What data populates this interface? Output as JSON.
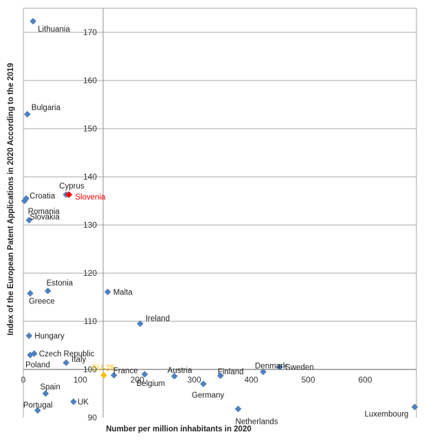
{
  "chart_data": {
    "type": "scatter",
    "xlabel": "Number per million inhabitants in 2020",
    "ylabel": "Index of the European Patent Applications in 2020 According to the 2019",
    "xlim": [
      0,
      690
    ],
    "ylim": [
      90,
      175
    ],
    "x_ticks": [
      "0",
      "100",
      "200",
      "300",
      "400",
      "500",
      "600"
    ],
    "y_ticks": [
      "90",
      "100",
      "110",
      "120",
      "130",
      "140",
      "150",
      "160",
      "170"
    ],
    "grid": "horizontal",
    "reference_lines": {
      "x": 140,
      "y": 100
    },
    "colors": {
      "default": "#4f81bd",
      "highlight": "#ff0000",
      "average": "#ffc000"
    },
    "points": [
      {
        "name": "Lithuania",
        "x": 17,
        "y": 172.3,
        "color": "#4f81bd",
        "label_color": "#222222"
      },
      {
        "name": "Bulgaria",
        "x": 7,
        "y": 153.0,
        "color": "#4f81bd",
        "label_color": "#222222"
      },
      {
        "name": "Croatia",
        "x": 5,
        "y": 135.5,
        "color": "#4f81bd",
        "label_color": "#222222"
      },
      {
        "name": "Romania",
        "x": 2,
        "y": 135.0,
        "color": "#4f81bd",
        "label_color": "#222222"
      },
      {
        "name": "Cyprus",
        "x": 75,
        "y": 136.3,
        "color": "#4f81bd",
        "label_color": "#222222"
      },
      {
        "name": "Slovenia",
        "x": 80,
        "y": 136.3,
        "color": "#ff0000",
        "label_color": "#ff0000"
      },
      {
        "name": "Slovakia",
        "x": 10,
        "y": 131.0,
        "color": "#4f81bd",
        "label_color": "#222222"
      },
      {
        "name": "Estonia",
        "x": 43,
        "y": 116.3,
        "color": "#4f81bd",
        "label_color": "#222222"
      },
      {
        "name": "Greece",
        "x": 12,
        "y": 115.8,
        "color": "#4f81bd",
        "label_color": "#222222"
      },
      {
        "name": "Malta",
        "x": 148,
        "y": 116.1,
        "color": "#4f81bd",
        "label_color": "#222222"
      },
      {
        "name": "Ireland",
        "x": 205,
        "y": 109.5,
        "color": "#4f81bd",
        "label_color": "#222222"
      },
      {
        "name": "Hungary",
        "x": 10,
        "y": 107.0,
        "color": "#4f81bd",
        "label_color": "#222222"
      },
      {
        "name": "Czech Republic",
        "x": 19,
        "y": 103.3,
        "color": "#4f81bd",
        "label_color": "#222222"
      },
      {
        "name": "Poland",
        "x": 12,
        "y": 103.0,
        "color": "#4f81bd",
        "label_color": "#222222"
      },
      {
        "name": "Italy",
        "x": 75,
        "y": 101.4,
        "color": "#4f81bd",
        "label_color": "#222222"
      },
      {
        "name": "EU-28",
        "x": 141,
        "y": 98.8,
        "color": "#ffc000",
        "label_color": "#ffc000"
      },
      {
        "name": "France",
        "x": 159,
        "y": 98.8,
        "color": "#4f81bd",
        "label_color": "#222222"
      },
      {
        "name": "Belgium",
        "x": 213,
        "y": 99.0,
        "color": "#4f81bd",
        "label_color": "#222222"
      },
      {
        "name": "Austria",
        "x": 265,
        "y": 98.6,
        "color": "#4f81bd",
        "label_color": "#222222"
      },
      {
        "name": "Germany",
        "x": 316,
        "y": 97.0,
        "color": "#4f81bd",
        "label_color": "#222222"
      },
      {
        "name": "Finland",
        "x": 346,
        "y": 98.7,
        "color": "#4f81bd",
        "label_color": "#222222"
      },
      {
        "name": "Denmark",
        "x": 421,
        "y": 99.5,
        "color": "#4f81bd",
        "label_color": "#222222"
      },
      {
        "name": "Sweden",
        "x": 450,
        "y": 100.5,
        "color": "#4f81bd",
        "label_color": "#222222"
      },
      {
        "name": "Spain",
        "x": 39,
        "y": 95.0,
        "color": "#4f81bd",
        "label_color": "#222222"
      },
      {
        "name": "UK",
        "x": 88,
        "y": 93.3,
        "color": "#4f81bd",
        "label_color": "#222222"
      },
      {
        "name": "Portugal",
        "x": 25,
        "y": 91.5,
        "color": "#4f81bd",
        "label_color": "#222222"
      },
      {
        "name": "Netherlands",
        "x": 377,
        "y": 91.8,
        "color": "#4f81bd",
        "label_color": "#222222"
      },
      {
        "name": "Luxembourg",
        "x": 687,
        "y": 92.2,
        "color": "#4f81bd",
        "label_color": "#222222"
      }
    ]
  }
}
